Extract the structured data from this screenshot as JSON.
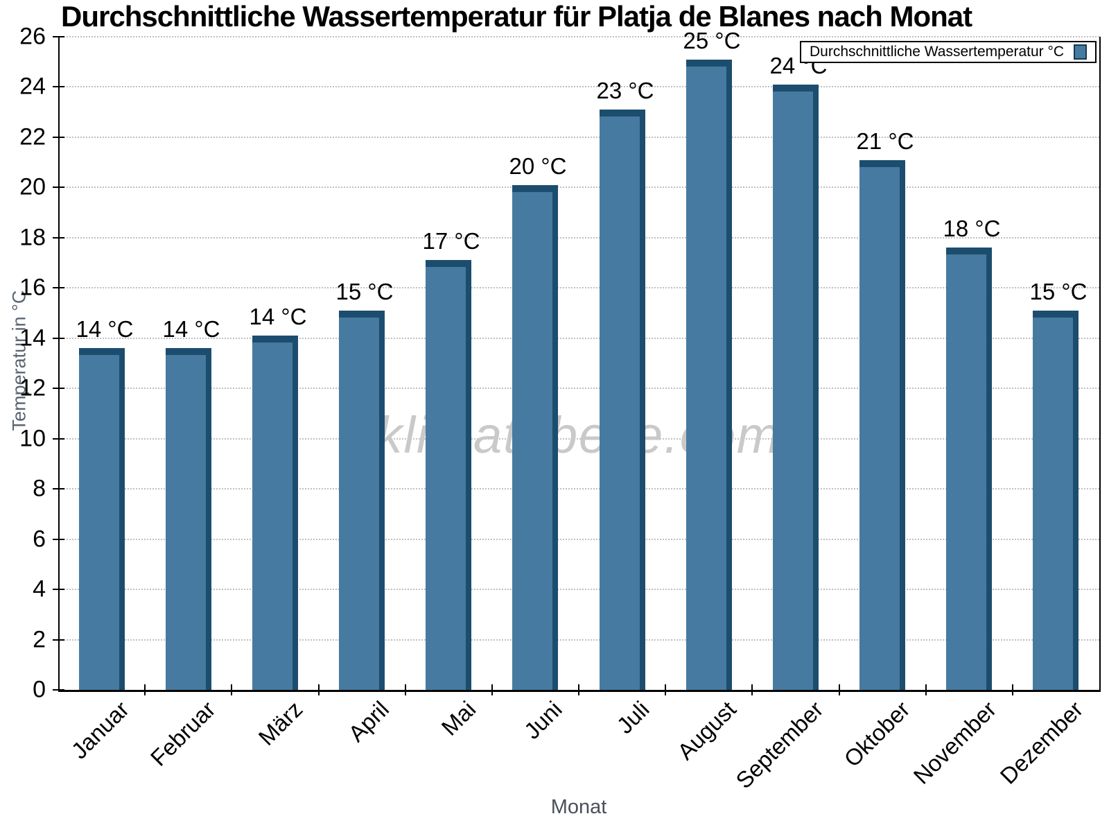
{
  "title": "Durchschnittliche Wassertemperatur für Platja de Blanes nach Monat",
  "axis": {
    "x_label": "Monat",
    "y_label": "Temperatur in °C"
  },
  "legend": {
    "label": "Durchschnittliche Wassertemperatur °C"
  },
  "watermark": "klimatabelle.com",
  "colors": {
    "bar_fill": "#477AA0",
    "bar_edge": "#1C4D6E",
    "gridline": "#bfbfbf",
    "axis": "#000000",
    "watermark": "#c9c9c9",
    "y_axis_title": "#5a6472",
    "x_axis_title": "#4a5058"
  },
  "chart_data": {
    "type": "bar",
    "title": "Durchschnittliche Wassertemperatur für Platja de Blanes nach Monat",
    "xlabel": "Monat",
    "ylabel": "Temperatur in °C",
    "categories": [
      "Januar",
      "Februar",
      "März",
      "April",
      "Mai",
      "Juni",
      "Juli",
      "August",
      "September",
      "Oktober",
      "November",
      "Dezember"
    ],
    "values": [
      13.6,
      13.6,
      14.1,
      15.1,
      17.1,
      20.1,
      23.1,
      25.1,
      24.1,
      21.1,
      17.6,
      15.1
    ],
    "bar_labels": [
      "14 °C",
      "14 °C",
      "14 °C",
      "15 °C",
      "17 °C",
      "20 °C",
      "23 °C",
      "25 °C",
      "24 °C",
      "21 °C",
      "18 °C",
      "15 °C"
    ],
    "series": [
      {
        "name": "Durchschnittliche Wassertemperatur °C",
        "values": [
          13.6,
          13.6,
          14.1,
          15.1,
          17.1,
          20.1,
          23.1,
          25.1,
          24.1,
          21.1,
          17.6,
          15.1
        ]
      }
    ],
    "ylim": [
      0,
      26
    ],
    "yticks": [
      0,
      2,
      4,
      6,
      8,
      10,
      12,
      14,
      16,
      18,
      20,
      22,
      24,
      26
    ],
    "grid": "horizontal-dotted",
    "legend_position": "top-right"
  }
}
